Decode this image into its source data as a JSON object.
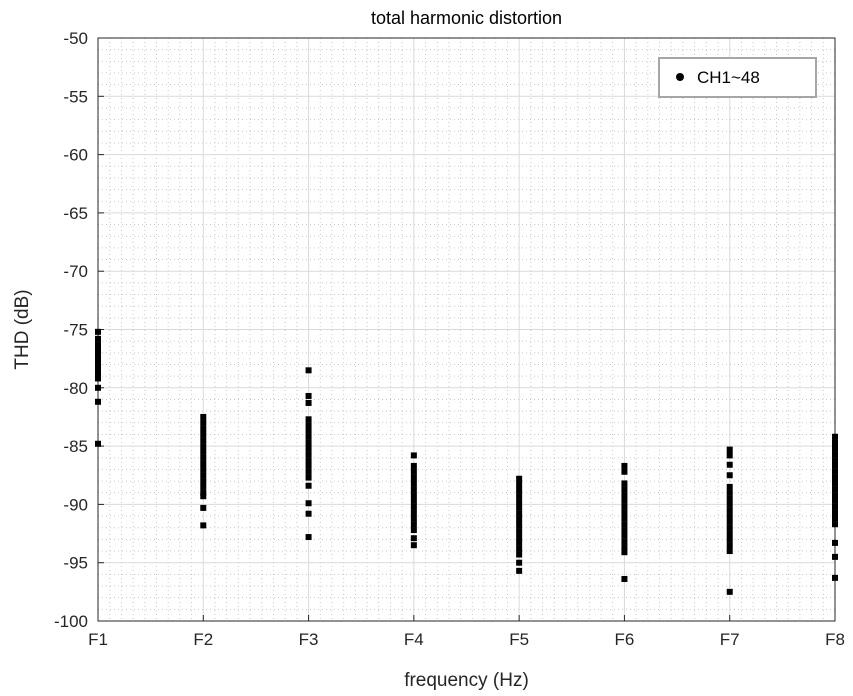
{
  "chart_data": {
    "type": "scatter",
    "title": "total harmonic distortion",
    "xlabel": "frequency (Hz)",
    "ylabel": "THD (dB)",
    "categories": [
      "F1",
      "F2",
      "F3",
      "F4",
      "F5",
      "F6",
      "F7",
      "F8"
    ],
    "ylim": [
      -100,
      -50
    ],
    "yticks": [
      -50,
      -55,
      -60,
      -65,
      -70,
      -75,
      -80,
      -85,
      -90,
      -95,
      -100
    ],
    "grid": true,
    "minor_grid": true,
    "legend_position": "top-right",
    "series": [
      {
        "name": "CH1~48",
        "color": "#000000",
        "marker": "square",
        "values": [
          [
            -75.2,
            -75.8,
            -76.3,
            -76.8,
            -77.2,
            -77.6,
            -78.0,
            -78.4,
            -78.8,
            -79.2,
            -80.0,
            -81.2,
            -84.8
          ],
          [
            -82.5,
            -83.0,
            -83.5,
            -84.0,
            -84.5,
            -85.0,
            -85.5,
            -86.0,
            -86.5,
            -87.0,
            -87.5,
            -88.0,
            -88.5,
            -89.0,
            -89.3,
            -90.3,
            -91.8
          ],
          [
            -78.5,
            -80.7,
            -81.3,
            -82.7,
            -83.2,
            -83.7,
            -84.2,
            -84.7,
            -85.2,
            -85.7,
            -86.2,
            -86.7,
            -87.2,
            -87.7,
            -88.4,
            -89.9,
            -90.8,
            -92.8
          ],
          [
            -85.8,
            -86.7,
            -87.2,
            -87.7,
            -88.2,
            -88.7,
            -89.2,
            -89.7,
            -90.2,
            -90.7,
            -91.2,
            -91.7,
            -92.2,
            -92.9,
            -93.5
          ],
          [
            -87.8,
            -88.3,
            -88.8,
            -89.3,
            -89.8,
            -90.3,
            -90.8,
            -91.3,
            -91.8,
            -92.3,
            -92.8,
            -93.3,
            -93.8,
            -94.3,
            -95.0,
            -95.7
          ],
          [
            -86.7,
            -87.2,
            -88.2,
            -88.7,
            -89.2,
            -89.7,
            -90.2,
            -90.7,
            -91.2,
            -91.7,
            -92.2,
            -92.7,
            -93.2,
            -93.7,
            -94.1,
            -96.4
          ],
          [
            -85.3,
            -85.8,
            -86.6,
            -87.5,
            -88.5,
            -89.0,
            -89.5,
            -90.0,
            -90.5,
            -91.0,
            -91.5,
            -92.0,
            -92.5,
            -93.0,
            -93.5,
            -94.0,
            -97.5
          ],
          [
            -84.2,
            -84.7,
            -85.2,
            -85.7,
            -86.2,
            -86.7,
            -87.2,
            -87.7,
            -88.2,
            -88.7,
            -89.2,
            -89.7,
            -90.2,
            -90.7,
            -91.2,
            -91.7,
            -93.3,
            -94.5,
            -96.3
          ]
        ]
      }
    ]
  }
}
